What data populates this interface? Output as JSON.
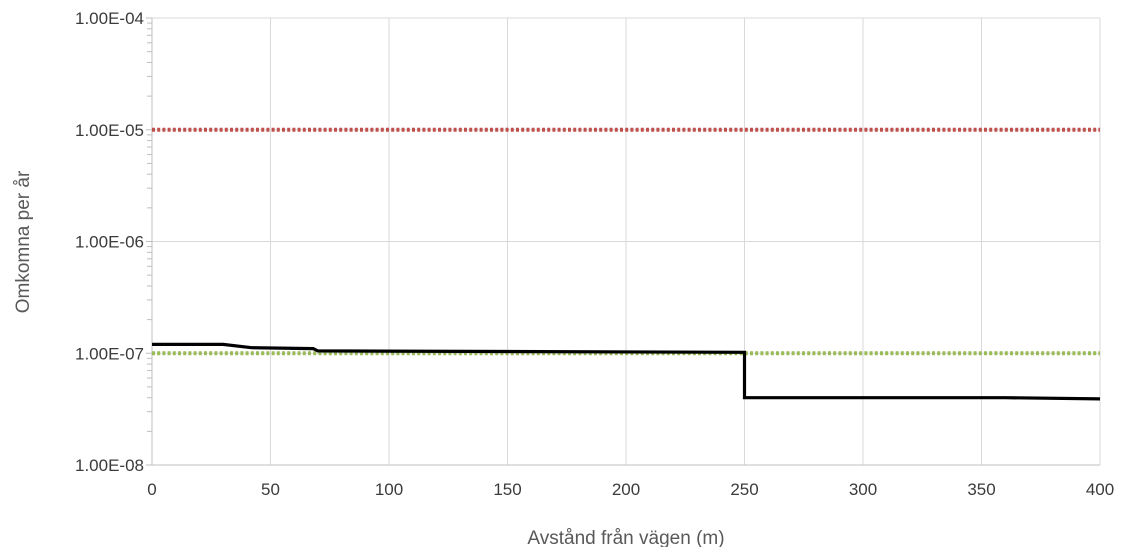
{
  "chart_data": {
    "type": "line",
    "xlabel": "Avstånd från vägen (m)",
    "ylabel": "Omkomna per år",
    "yscale": "log",
    "xlim": [
      0,
      400
    ],
    "ylim": [
      1e-08,
      0.0001
    ],
    "grid": true,
    "legend": "none",
    "x_ticks": [
      0,
      50,
      100,
      150,
      200,
      250,
      300,
      350,
      400
    ],
    "x_tick_labels": [
      "0",
      "50",
      "100",
      "150",
      "200",
      "250",
      "300",
      "350",
      "400"
    ],
    "y_ticks": [
      0.0001,
      1e-05,
      1e-06,
      1e-07,
      1e-08
    ],
    "y_tick_labels": [
      "1.00E-04",
      "1.00E-05",
      "1.00E-06",
      "1.00E-07",
      "1.00E-08"
    ],
    "series": [
      {
        "color": "#c0504d",
        "style": "dotted",
        "x": [
          0,
          400
        ],
        "y": [
          1e-05,
          1e-05
        ]
      },
      {
        "color": "#9bbb59",
        "style": "dotted",
        "x": [
          0,
          400
        ],
        "y": [
          1e-07,
          1e-07
        ]
      },
      {
        "color": "#000000",
        "style": "solid",
        "x": [
          0,
          30,
          42,
          68,
          70,
          250,
          250,
          360,
          400
        ],
        "y": [
          1.2e-07,
          1.2e-07,
          1.12e-07,
          1.1e-07,
          1.05e-07,
          1.02e-07,
          4e-08,
          4e-08,
          3.9e-08
        ]
      }
    ]
  }
}
